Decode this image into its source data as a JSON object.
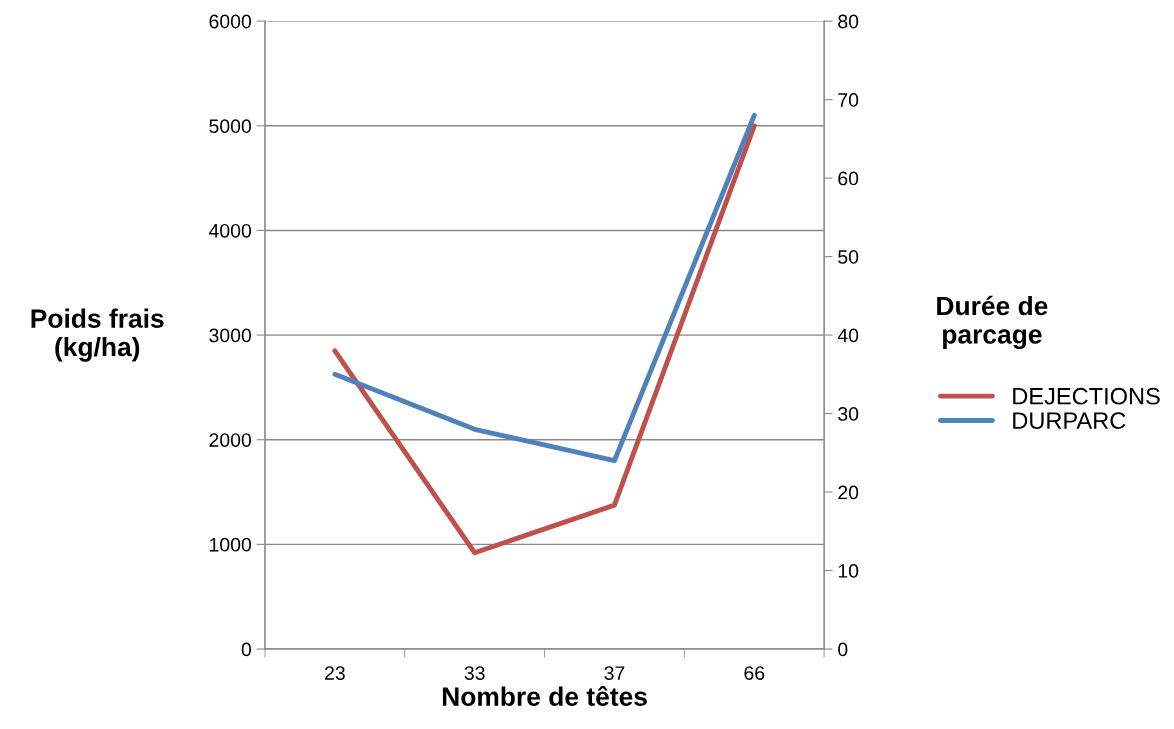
{
  "chart_data": {
    "type": "line",
    "xlabel": "Nombre de têtes",
    "ylabel": "Poids frais\n(kg/ha)",
    "y2label": "Durée de\nparcage",
    "categories": [
      "23",
      "33",
      "37",
      "66"
    ],
    "series": [
      {
        "name": "DEJECTIONS",
        "color": "#c0504d",
        "values": [
          2850,
          920,
          1375,
          5000
        ]
      },
      {
        "name": "DURPARC",
        "color": "#4f81bd",
        "values": [
          35,
          28,
          24,
          68
        ],
        "axis": "y2"
      }
    ],
    "ylim": [
      0,
      6000
    ],
    "yticks": [
      0,
      1000,
      2000,
      3000,
      4000,
      5000,
      6000
    ],
    "y2lim": [
      0,
      80
    ],
    "y2ticks": [
      0,
      10,
      20,
      30,
      40,
      50,
      60,
      70,
      80
    ],
    "grid": "y",
    "legend": "right",
    "marker": "none",
    "line_style": "solid"
  }
}
